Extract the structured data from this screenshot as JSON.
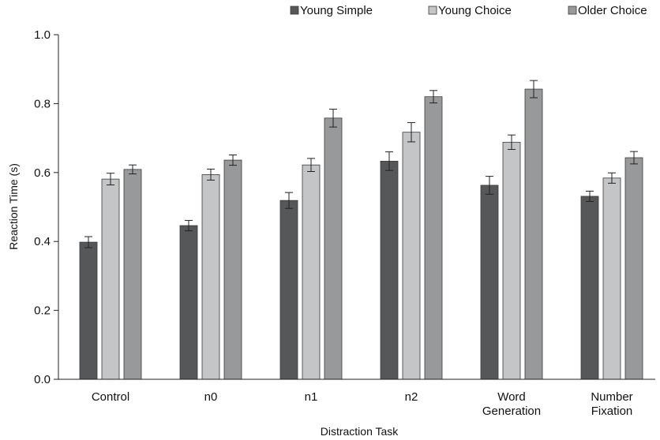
{
  "chart_data": {
    "type": "bar",
    "title": "",
    "xlabel": "Distraction Task",
    "ylabel": "Reaction Time (s)",
    "ylim": [
      0.0,
      1.0
    ],
    "yticks": [
      "0.0",
      "0.2",
      "0.4",
      "0.6",
      "0.8",
      "1.0"
    ],
    "grid": false,
    "legend_position": "top-right",
    "categories": [
      [
        "Control"
      ],
      [
        "n0"
      ],
      [
        "n1"
      ],
      [
        "n2"
      ],
      [
        "Word",
        "Generation"
      ],
      [
        "Number",
        "Fixation"
      ]
    ],
    "series": [
      {
        "name": "Young Simple",
        "color": "#555759",
        "values": [
          0.398,
          0.446,
          0.519,
          0.633,
          0.563,
          0.531
        ],
        "errors": [
          0.016,
          0.015,
          0.023,
          0.027,
          0.026,
          0.015
        ]
      },
      {
        "name": "Young Choice",
        "color": "#c3c5c7",
        "values": [
          0.581,
          0.594,
          0.622,
          0.717,
          0.688,
          0.584
        ],
        "errors": [
          0.017,
          0.016,
          0.019,
          0.028,
          0.021,
          0.015
        ]
      },
      {
        "name": "Older Choice",
        "color": "#97999b",
        "values": [
          0.609,
          0.636,
          0.758,
          0.82,
          0.842,
          0.643
        ],
        "errors": [
          0.013,
          0.015,
          0.026,
          0.018,
          0.025,
          0.018
        ]
      }
    ]
  }
}
